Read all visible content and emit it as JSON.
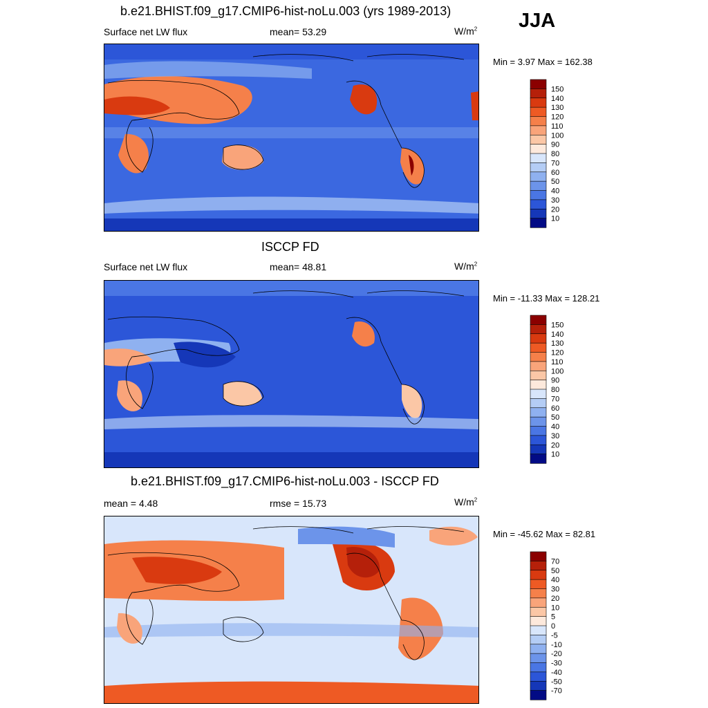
{
  "season": "JJA",
  "panels": [
    {
      "title": "b.e21.BHIST.f09_g17.CMIP6-hist-noLu.003 (yrs 1989-2013)",
      "left_label": "Surface net LW flux",
      "center_label": "mean=  53.29",
      "units": "W/m",
      "units_sup": "2",
      "minmax": "Min =   3.97 Max = 162.38",
      "colorbar": {
        "labels": [
          "150",
          "140",
          "130",
          "120",
          "110",
          "100",
          "90",
          "80",
          "70",
          "60",
          "50",
          "40",
          "30",
          "20",
          "10"
        ],
        "colors": [
          "#8b0000",
          "#b5200a",
          "#d93a10",
          "#ee5a24",
          "#f5804a",
          "#f9a47a",
          "#fbc7a6",
          "#fde9dc",
          "#d8e6fb",
          "#b4cdf5",
          "#8fb1f0",
          "#6c94ea",
          "#4a76e4",
          "#2c56d8",
          "#1537b8",
          "#020b85"
        ]
      }
    },
    {
      "title": "ISCCP FD",
      "left_label": "Surface net LW flux",
      "center_label": "mean=  48.81",
      "units": "W/m",
      "units_sup": "2",
      "minmax": "Min = -11.33 Max = 128.21",
      "colorbar": {
        "labels": [
          "150",
          "140",
          "130",
          "120",
          "110",
          "100",
          "90",
          "80",
          "70",
          "60",
          "50",
          "40",
          "30",
          "20",
          "10"
        ],
        "colors": [
          "#8b0000",
          "#b5200a",
          "#d93a10",
          "#ee5a24",
          "#f5804a",
          "#f9a47a",
          "#fbc7a6",
          "#fde9dc",
          "#d8e6fb",
          "#b4cdf5",
          "#8fb1f0",
          "#6c94ea",
          "#4a76e4",
          "#2c56d8",
          "#1537b8",
          "#020b85"
        ]
      }
    },
    {
      "title": "b.e21.BHIST.f09_g17.CMIP6-hist-noLu.003 - ISCCP FD",
      "left_label": "mean =   4.48",
      "center_label": "rmse =  15.73",
      "units": "W/m",
      "units_sup": "2",
      "minmax": "Min = -45.62 Max =  82.81",
      "colorbar": {
        "labels": [
          "70",
          "50",
          "40",
          "30",
          "20",
          "10",
          "5",
          "0",
          "-5",
          "-10",
          "-20",
          "-30",
          "-40",
          "-50",
          "-70"
        ],
        "colors": [
          "#8b0000",
          "#b5200a",
          "#d93a10",
          "#ee5a24",
          "#f5804a",
          "#f9a47a",
          "#fbc7a6",
          "#fde9dc",
          "#d8e6fb",
          "#b4cdf5",
          "#8fb1f0",
          "#6c94ea",
          "#4a76e4",
          "#2c56d8",
          "#1537b8",
          "#020b85"
        ]
      }
    }
  ],
  "chart_data": [
    {
      "type": "heatmap",
      "title": "b.e21.BHIST.f09_g17.CMIP6-hist-noLu.003 (yrs 1989-2013)",
      "variable": "Surface net LW flux",
      "mean": 53.29,
      "units": "W/m2",
      "min": 3.97,
      "max": 162.38,
      "contour_levels": [
        10,
        20,
        30,
        40,
        50,
        60,
        70,
        80,
        90,
        100,
        110,
        120,
        130,
        140,
        150
      ]
    },
    {
      "type": "heatmap",
      "title": "ISCCP FD",
      "variable": "Surface net LW flux",
      "mean": 48.81,
      "units": "W/m2",
      "min": -11.33,
      "max": 128.21,
      "contour_levels": [
        10,
        20,
        30,
        40,
        50,
        60,
        70,
        80,
        90,
        100,
        110,
        120,
        130,
        140,
        150
      ]
    },
    {
      "type": "heatmap",
      "title": "b.e21.BHIST.f09_g17.CMIP6-hist-noLu.003 - ISCCP FD",
      "mean": 4.48,
      "rmse": 15.73,
      "units": "W/m2",
      "min": -45.62,
      "max": 82.81,
      "contour_levels": [
        -70,
        -50,
        -40,
        -30,
        -20,
        -10,
        -5,
        0,
        5,
        10,
        20,
        30,
        40,
        50,
        70
      ]
    }
  ]
}
